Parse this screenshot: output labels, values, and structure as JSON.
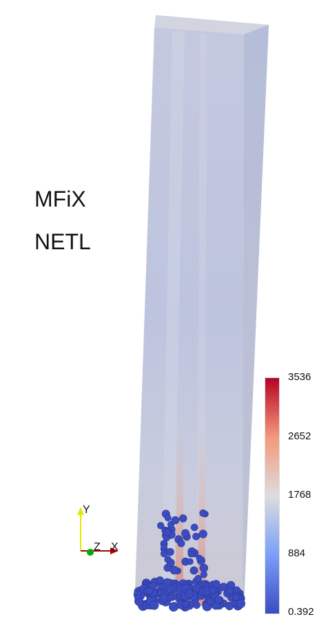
{
  "annotations": [
    "MFiX",
    "NETL"
  ],
  "colorbar": {
    "labels": [
      "3536",
      "2652",
      "1768",
      "884",
      "0.392"
    ],
    "colors": [
      "#b40426",
      "#f4987a",
      "#dddddd",
      "#7b9ff9",
      "#3b4cc0"
    ]
  },
  "axes": {
    "y": "Y",
    "z": "Z",
    "x": "X",
    "colors": {
      "y": "#e6e600",
      "x": "#aa0000",
      "z": "#00aa00"
    }
  },
  "scene": {
    "column_color": "#c6cbe0",
    "particle_color": "#3b4cc0"
  }
}
